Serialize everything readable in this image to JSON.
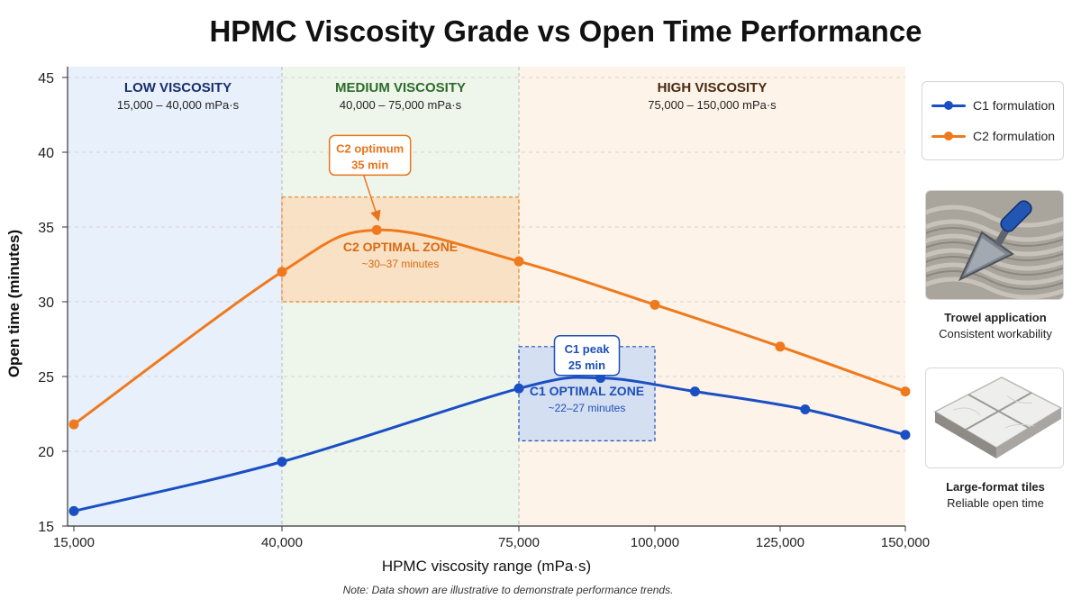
{
  "title": "HPMC Viscosity Grade vs Open Time Performance",
  "note": "Note: Data shown are illustrative to demonstrate performance trends.",
  "regions": [
    {
      "name": "LOW VISCOSITY",
      "range": "15,000 – 40,000 mPa·s",
      "from": 15000,
      "to": 40000,
      "fill": "#e8f0fb",
      "text_color": "#1a2f6b",
      "range_color": "#222222"
    },
    {
      "name": "MEDIUM VISCOSITY",
      "range": "40,000 – 75,000 mPa·s",
      "from": 40000,
      "to": 75000,
      "fill": "#eef6ec",
      "text_color": "#2e6b2a",
      "range_color": "#222222"
    },
    {
      "name": "HIGH VISCOSITY",
      "range": "75,000 – 150,000 mPa·s",
      "from": 75000,
      "to": 150000,
      "fill": "#fdf3e8",
      "text_color": "#4a2a12",
      "range_color": "#222222"
    }
  ],
  "zones": [
    {
      "series": "C1",
      "label": "C1 OPTIMAL ZONE",
      "sub": "~22–27 minutes",
      "x_from": 75000,
      "x_to": 100000,
      "y_from": 20.7,
      "y_to": 27,
      "fill": "#c9d9f2",
      "stroke": "#1e4fb8",
      "text_color": "#1e4fb8"
    },
    {
      "series": "C2",
      "label": "C2 OPTIMAL ZONE",
      "sub": "~30–37 minutes",
      "x_from": 40000,
      "x_to": 75000,
      "y_from": 30,
      "y_to": 37,
      "fill": "#fbdcbc",
      "stroke": "#e9801f",
      "text_color": "#d86a10"
    }
  ],
  "callouts": [
    {
      "series": "C2",
      "line1": "C2 optimum",
      "line2": "35 min",
      "box_x": 53000,
      "box_y": 39.8,
      "target_x": 54200,
      "target_y": 35.3,
      "color": "#e9741a"
    },
    {
      "series": "C1",
      "line1": "C1 peak",
      "line2": "25 min",
      "box_x": 87500,
      "box_y": 26.4,
      "target_x": 90000,
      "target_y": 25.3,
      "color": "#1e4fb8"
    }
  ],
  "chart_data": {
    "type": "line",
    "title": "HPMC Viscosity Grade vs Open Time Performance",
    "xlabel": "HPMC viscosity range (mPa·s)",
    "ylabel": "Open time (minutes)",
    "x_ticks": [
      15000,
      40000,
      75000,
      100000,
      125000,
      150000
    ],
    "x_tick_labels": [
      "15,000",
      "40,000",
      "75,000",
      "100,000",
      "125,000",
      "150,000"
    ],
    "xlim": [
      15000,
      150000
    ],
    "y_ticks": [
      15,
      20,
      25,
      30,
      35,
      40,
      45
    ],
    "ylim": [
      15,
      45
    ],
    "grid": true,
    "legend_position": "right",
    "series": [
      {
        "name": "C1 formulation",
        "color": "#1a4fc4",
        "x": [
          15000,
          40000,
          75000,
          90000,
          108000,
          130000,
          150000
        ],
        "y": [
          16.0,
          19.3,
          24.2,
          24.9,
          24.0,
          22.8,
          21.1
        ]
      },
      {
        "name": "C2 formulation",
        "color": "#ef7a1d",
        "x": [
          15000,
          40000,
          54000,
          75000,
          100000,
          125000,
          150000
        ],
        "y": [
          21.8,
          32.0,
          34.8,
          32.7,
          29.8,
          27.0,
          24.0
        ]
      }
    ]
  },
  "side_panels": [
    {
      "title": "Trowel application",
      "subtitle": "Consistent workability",
      "icon": "trowel-icon"
    },
    {
      "title": "Large-format tiles",
      "subtitle": "Reliable open time",
      "icon": "tiles-icon"
    }
  ]
}
